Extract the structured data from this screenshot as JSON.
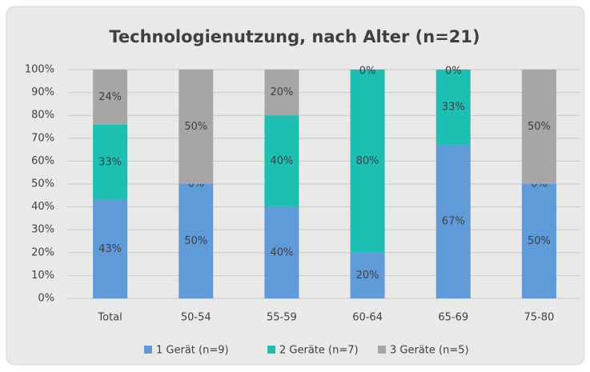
{
  "chart_data": {
    "type": "stacked_bar",
    "title": "Technologienutzung, nach Alter (n=21)",
    "categories": [
      "Total",
      "50-54",
      "55-59",
      "60-64",
      "65-69",
      "75-80"
    ],
    "series": [
      {
        "name": "1 Gerät (n=9)",
        "color": "#5f9ad9",
        "values": [
          43,
          50,
          40,
          20,
          67,
          50
        ],
        "value_labels": [
          "43%",
          "50%",
          "40%",
          "20%",
          "67%",
          "50%"
        ]
      },
      {
        "name": "2 Geräte (n=7)",
        "color": "#1cbfb1",
        "values": [
          33,
          0,
          40,
          80,
          33,
          0
        ],
        "value_labels": [
          "33%",
          "0%",
          "40%",
          "80%",
          "33%",
          "0%"
        ]
      },
      {
        "name": "3 Geräte (n=5)",
        "color": "#a6a6a6",
        "values": [
          24,
          50,
          20,
          0,
          0,
          50
        ],
        "value_labels": [
          "24%",
          "50%",
          "20%",
          "0%",
          "0%",
          "50%"
        ]
      }
    ],
    "ylim": [
      0,
      100
    ],
    "yticks": [
      {
        "value": 0,
        "label": "0%"
      },
      {
        "value": 10,
        "label": "10%"
      },
      {
        "value": 20,
        "label": "20%"
      },
      {
        "value": 30,
        "label": "30%"
      },
      {
        "value": 40,
        "label": "40%"
      },
      {
        "value": 50,
        "label": "50%"
      },
      {
        "value": 60,
        "label": "60%"
      },
      {
        "value": 70,
        "label": "70%"
      },
      {
        "value": 80,
        "label": "80%"
      },
      {
        "value": 90,
        "label": "90%"
      },
      {
        "value": 100,
        "label": "100%"
      }
    ],
    "grid": true,
    "legend": "bottom"
  }
}
